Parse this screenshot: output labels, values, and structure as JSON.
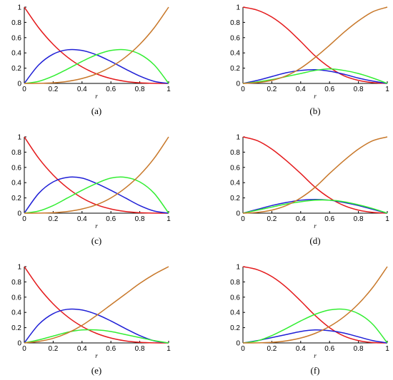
{
  "colors": {
    "red": "#e41a1c",
    "blue": "#1f1fd6",
    "green": "#33ee33",
    "orange": "#c8782a"
  },
  "chart_data": [
    {
      "type": "line",
      "caption": "(a)",
      "xlabel": "r",
      "ylabel": "",
      "xlim": [
        0,
        1
      ],
      "ylim": [
        0,
        1
      ],
      "xticks": [
        "0",
        "0.2",
        "0.4",
        "0.6",
        "0.8",
        "1"
      ],
      "yticks": [
        "0",
        "0.2",
        "0.4",
        "0.6",
        "0.8",
        "1"
      ],
      "x": [
        0,
        0.1,
        0.2,
        0.3,
        0.4,
        0.5,
        0.6,
        0.7,
        0.8,
        0.9,
        1
      ],
      "series": [
        {
          "color": "red",
          "values": [
            1,
            0.729,
            0.512,
            0.343,
            0.216,
            0.125,
            0.064,
            0.027,
            0.008,
            0.001,
            0
          ]
        },
        {
          "color": "blue",
          "values": [
            0,
            0.243,
            0.384,
            0.441,
            0.432,
            0.375,
            0.288,
            0.189,
            0.096,
            0.027,
            0
          ]
        },
        {
          "color": "green",
          "values": [
            0,
            0.027,
            0.096,
            0.189,
            0.288,
            0.375,
            0.432,
            0.441,
            0.384,
            0.243,
            0
          ]
        },
        {
          "color": "orange",
          "values": [
            0,
            0.001,
            0.008,
            0.027,
            0.064,
            0.125,
            0.216,
            0.343,
            0.512,
            0.729,
            1
          ]
        }
      ]
    },
    {
      "type": "line",
      "caption": "(b)",
      "xlabel": "r",
      "ylabel": "",
      "xlim": [
        0,
        1
      ],
      "ylim": [
        0,
        1
      ],
      "xticks": [
        "0",
        "0.2",
        "0.4",
        "0.6",
        "0.8",
        "1"
      ],
      "yticks": [
        "0",
        "0.2",
        "0.4",
        "0.6",
        "0.8",
        "1"
      ],
      "x": [
        0,
        0.1,
        0.2,
        0.3,
        0.4,
        0.5,
        0.6,
        0.7,
        0.8,
        0.9,
        1
      ],
      "series": [
        {
          "color": "red",
          "values": [
            1,
            0.96,
            0.87,
            0.73,
            0.55,
            0.36,
            0.21,
            0.1,
            0.04,
            0.01,
            0
          ]
        },
        {
          "color": "blue",
          "values": [
            0,
            0.04,
            0.09,
            0.14,
            0.17,
            0.18,
            0.16,
            0.12,
            0.07,
            0.03,
            0
          ]
        },
        {
          "color": "green",
          "values": [
            0,
            0.02,
            0.05,
            0.09,
            0.13,
            0.17,
            0.19,
            0.17,
            0.13,
            0.07,
            0
          ]
        },
        {
          "color": "orange",
          "values": [
            0,
            0.01,
            0.04,
            0.1,
            0.2,
            0.34,
            0.5,
            0.67,
            0.82,
            0.94,
            1
          ]
        }
      ]
    },
    {
      "type": "line",
      "caption": "(c)",
      "xlabel": "r",
      "ylabel": "",
      "xlim": [
        0,
        1
      ],
      "ylim": [
        0,
        1
      ],
      "xticks": [
        "0",
        "0.2",
        "0.4",
        "0.6",
        "0.8",
        "1"
      ],
      "yticks": [
        "0",
        "0.2",
        "0.4",
        "0.6",
        "0.8",
        "1"
      ],
      "x": [
        0,
        0.1,
        0.2,
        0.3,
        0.4,
        0.5,
        0.6,
        0.7,
        0.8,
        0.9,
        1
      ],
      "series": [
        {
          "color": "red",
          "values": [
            1,
            0.72,
            0.5,
            0.33,
            0.2,
            0.11,
            0.055,
            0.022,
            0.006,
            0.001,
            0
          ]
        },
        {
          "color": "blue",
          "values": [
            0,
            0.26,
            0.41,
            0.47,
            0.46,
            0.39,
            0.3,
            0.2,
            0.1,
            0.028,
            0
          ]
        },
        {
          "color": "green",
          "values": [
            0,
            0.028,
            0.1,
            0.2,
            0.3,
            0.39,
            0.46,
            0.47,
            0.41,
            0.26,
            0
          ]
        },
        {
          "color": "orange",
          "values": [
            0,
            0.001,
            0.006,
            0.022,
            0.055,
            0.11,
            0.2,
            0.33,
            0.5,
            0.72,
            1
          ]
        }
      ]
    },
    {
      "type": "line",
      "caption": "(d)",
      "xlabel": "r",
      "ylabel": "",
      "xlim": [
        0,
        1
      ],
      "ylim": [
        0,
        1
      ],
      "xticks": [
        "0",
        "0.2",
        "0.4",
        "0.6",
        "0.8",
        "1"
      ],
      "yticks": [
        "0",
        "0.2",
        "0.4",
        "0.6",
        "0.8",
        "1"
      ],
      "x": [
        0,
        0.1,
        0.2,
        0.3,
        0.4,
        0.5,
        0.6,
        0.7,
        0.8,
        0.9,
        1
      ],
      "series": [
        {
          "color": "red",
          "values": [
            1,
            0.95,
            0.84,
            0.69,
            0.52,
            0.34,
            0.2,
            0.1,
            0.04,
            0.01,
            0
          ]
        },
        {
          "color": "blue",
          "values": [
            0,
            0.05,
            0.1,
            0.14,
            0.17,
            0.18,
            0.17,
            0.14,
            0.1,
            0.05,
            0
          ]
        },
        {
          "color": "green",
          "values": [
            0,
            0.04,
            0.08,
            0.12,
            0.15,
            0.17,
            0.17,
            0.15,
            0.11,
            0.06,
            0
          ]
        },
        {
          "color": "orange",
          "values": [
            0,
            0.01,
            0.04,
            0.1,
            0.2,
            0.34,
            0.52,
            0.69,
            0.84,
            0.95,
            1
          ]
        }
      ]
    },
    {
      "type": "line",
      "caption": "(e)",
      "xlabel": "r",
      "ylabel": "",
      "xlim": [
        0,
        1
      ],
      "ylim": [
        0,
        1
      ],
      "xticks": [
        "0",
        "0.2",
        "0.4",
        "0.6",
        "0.8",
        "1"
      ],
      "yticks": [
        "0",
        "0.2",
        "0.4",
        "0.6",
        "0.8",
        "1"
      ],
      "x": [
        0,
        0.1,
        0.2,
        0.3,
        0.4,
        0.5,
        0.6,
        0.7,
        0.8,
        0.9,
        1
      ],
      "series": [
        {
          "color": "red",
          "values": [
            1,
            0.729,
            0.512,
            0.343,
            0.216,
            0.125,
            0.064,
            0.027,
            0.008,
            0.001,
            0
          ]
        },
        {
          "color": "blue",
          "values": [
            0,
            0.243,
            0.384,
            0.441,
            0.432,
            0.375,
            0.288,
            0.189,
            0.096,
            0.027,
            0
          ]
        },
        {
          "color": "green",
          "values": [
            0,
            0.04,
            0.09,
            0.14,
            0.17,
            0.17,
            0.15,
            0.11,
            0.07,
            0.03,
            0
          ]
        },
        {
          "color": "orange",
          "values": [
            0,
            0.02,
            0.06,
            0.13,
            0.23,
            0.36,
            0.5,
            0.64,
            0.78,
            0.9,
            1
          ]
        }
      ]
    },
    {
      "type": "line",
      "caption": "(f)",
      "xlabel": "r",
      "ylabel": "",
      "xlim": [
        0,
        1
      ],
      "ylim": [
        0,
        1
      ],
      "xticks": [
        "0",
        "0.2",
        "0.4",
        "0.6",
        "0.8",
        "1"
      ],
      "yticks": [
        "0",
        "0.2",
        "0.4",
        "0.6",
        "0.8",
        "1"
      ],
      "x": [
        0,
        0.1,
        0.2,
        0.3,
        0.4,
        0.5,
        0.6,
        0.7,
        0.8,
        0.9,
        1
      ],
      "series": [
        {
          "color": "red",
          "values": [
            1,
            0.96,
            0.87,
            0.73,
            0.55,
            0.36,
            0.2,
            0.09,
            0.03,
            0.005,
            0
          ]
        },
        {
          "color": "blue",
          "values": [
            0,
            0.03,
            0.07,
            0.11,
            0.15,
            0.17,
            0.16,
            0.13,
            0.08,
            0.03,
            0
          ]
        },
        {
          "color": "green",
          "values": [
            0,
            0.027,
            0.096,
            0.189,
            0.288,
            0.375,
            0.432,
            0.441,
            0.384,
            0.243,
            0
          ]
        },
        {
          "color": "orange",
          "values": [
            0,
            0.001,
            0.008,
            0.027,
            0.064,
            0.125,
            0.216,
            0.343,
            0.512,
            0.729,
            1
          ]
        }
      ]
    }
  ]
}
